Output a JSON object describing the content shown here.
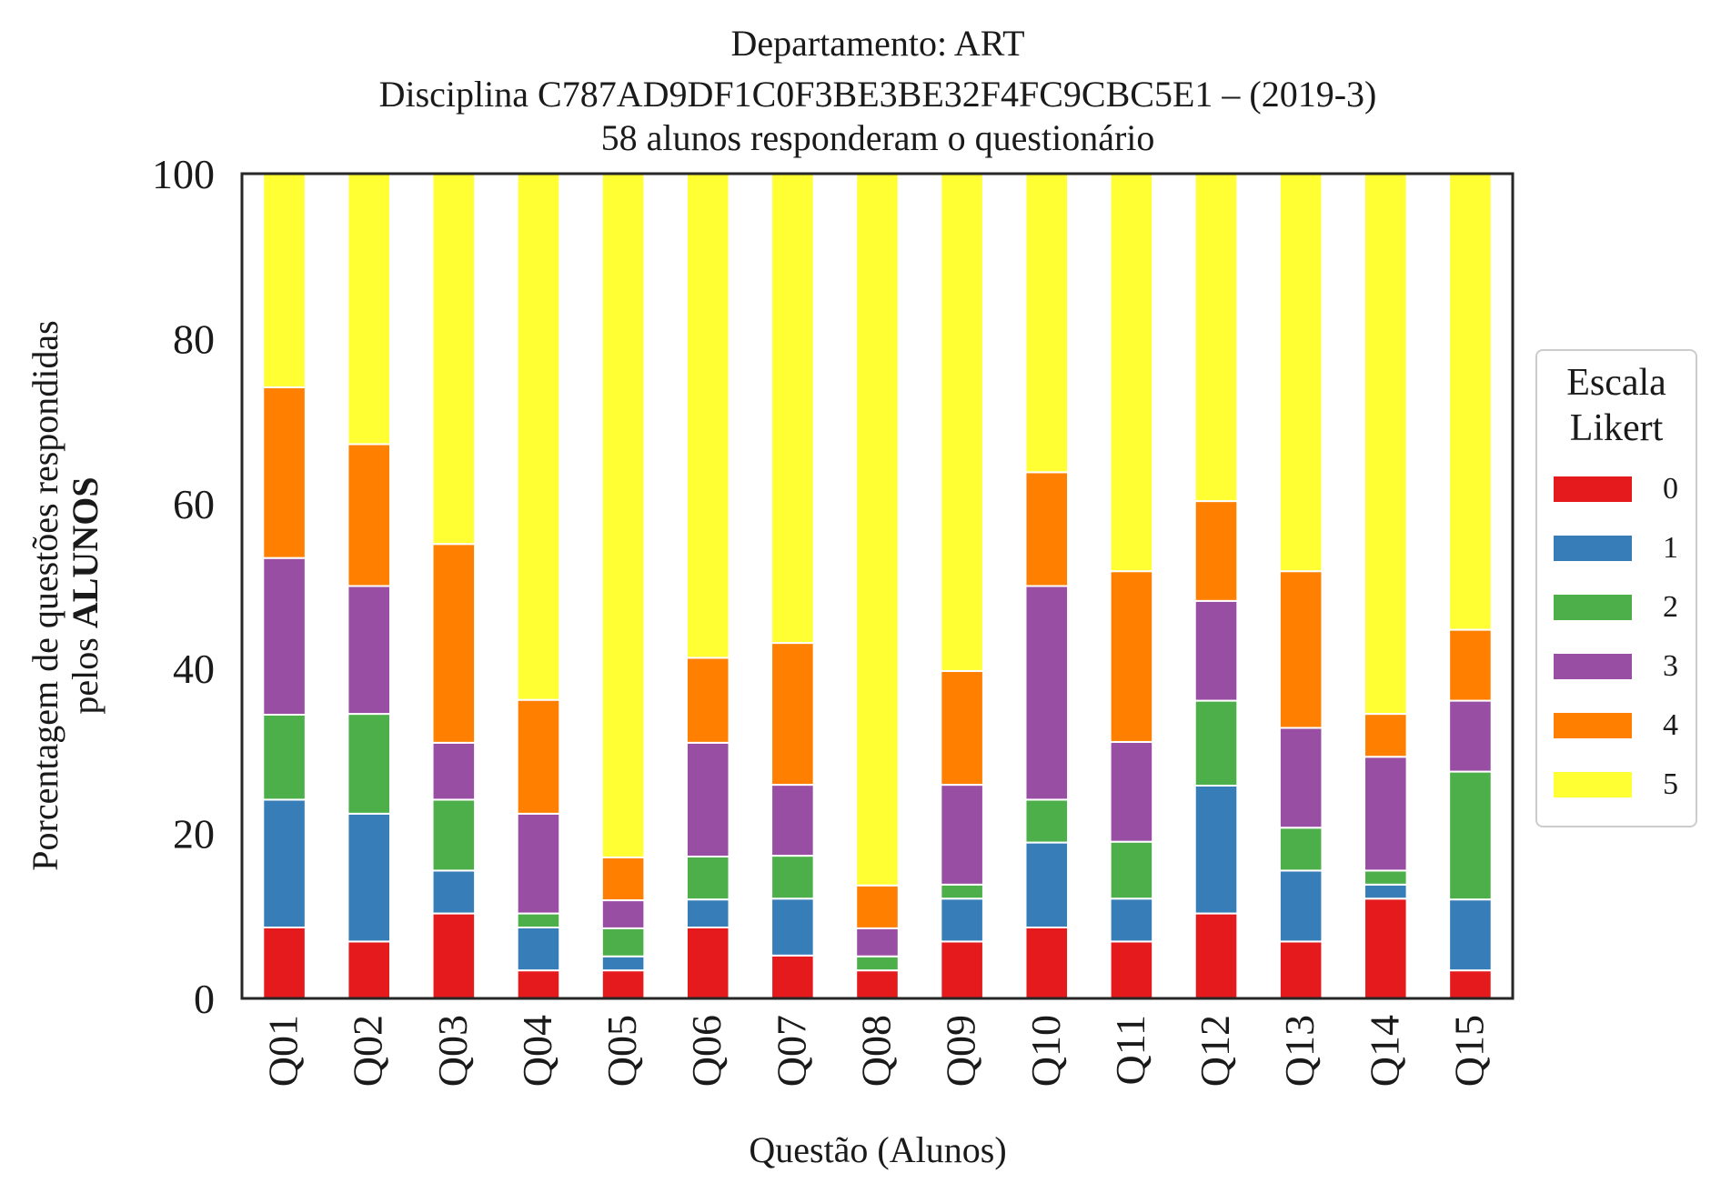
{
  "chart_data": {
    "type": "bar",
    "stacked": true,
    "title": [
      "Departamento: ART",
      "Disciplina C787AD9DF1C0F3BE3BE32F4FC9CBC5E1 – (2019-3)",
      "58 alunos responderam o questionário"
    ],
    "ylabel": [
      "Porcentagem de questões respondidas",
      "pelos",
      "ALUNOS"
    ],
    "xlabel": "Questão (Alunos)",
    "ylim": [
      0,
      100
    ],
    "yticks": [
      "0",
      "20",
      "40",
      "60",
      "80",
      "100"
    ],
    "categories": [
      "Q01",
      "Q02",
      "Q03",
      "Q04",
      "Q05",
      "Q06",
      "Q07",
      "Q08",
      "Q09",
      "Q10",
      "Q11",
      "Q12",
      "Q13",
      "Q14",
      "Q15"
    ],
    "legend": {
      "title": [
        "Escala",
        "Likert"
      ],
      "placement": "center-right outside"
    },
    "series": [
      {
        "name": "0",
        "color": "#e41a1c",
        "values": [
          8.6,
          6.9,
          10.3,
          3.4,
          3.4,
          8.6,
          5.2,
          3.4,
          6.9,
          8.6,
          6.9,
          10.3,
          6.9,
          12.1,
          3.4
        ]
      },
      {
        "name": "1",
        "color": "#377eb8",
        "values": [
          15.5,
          15.5,
          5.2,
          5.2,
          1.7,
          3.4,
          6.9,
          0.0,
          5.2,
          10.3,
          5.2,
          15.5,
          8.6,
          1.7,
          8.6
        ]
      },
      {
        "name": "2",
        "color": "#4daf4a",
        "values": [
          10.3,
          12.1,
          8.6,
          1.7,
          3.4,
          5.2,
          5.2,
          1.7,
          1.7,
          5.2,
          6.9,
          10.3,
          5.2,
          1.7,
          15.5
        ]
      },
      {
        "name": "3",
        "color": "#984ea3",
        "values": [
          19.0,
          15.5,
          6.9,
          12.1,
          3.4,
          13.8,
          8.6,
          3.4,
          12.1,
          25.9,
          12.1,
          12.1,
          12.1,
          13.8,
          8.6
        ]
      },
      {
        "name": "4",
        "color": "#ff7f00",
        "values": [
          20.7,
          17.2,
          24.1,
          13.8,
          5.2,
          10.3,
          17.2,
          5.2,
          13.8,
          13.8,
          20.7,
          12.1,
          19.0,
          5.2,
          8.6
        ]
      },
      {
        "name": "5",
        "color": "#ffff33",
        "values": [
          25.9,
          32.8,
          44.9,
          63.8,
          82.9,
          58.7,
          56.9,
          86.3,
          60.3,
          36.2,
          48.2,
          39.7,
          48.2,
          65.5,
          55.3
        ]
      }
    ]
  }
}
